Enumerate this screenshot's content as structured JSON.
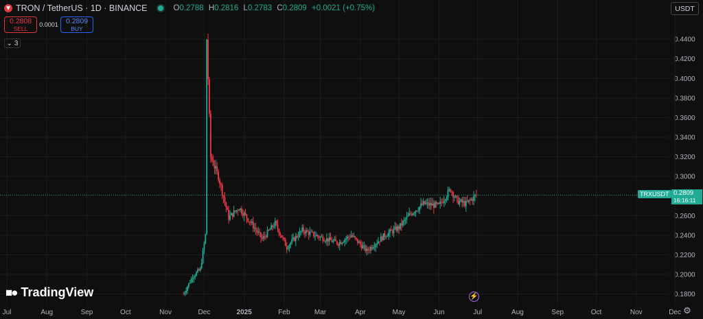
{
  "header": {
    "symbol": "TRON / TetherUS · 1D · BINANCE",
    "open_label": "O",
    "open": "0.2788",
    "high_label": "H",
    "high": "0.2816",
    "low_label": "L",
    "low": "0.2783",
    "close_label": "C",
    "close": "0.2809",
    "change": "+0.0021 (+0.75%)"
  },
  "trade": {
    "sell_price": "0.2808",
    "sell_label": "SELL",
    "spread": "0.0001",
    "buy_price": "0.2809",
    "buy_label": "BUY"
  },
  "indicators_toggle": {
    "count": "3"
  },
  "currency": "USDT",
  "price_label": {
    "ticker": "TRXUSDT",
    "price": "0.2809",
    "countdown": "16:16:11"
  },
  "brand": "TradingView",
  "colors": {
    "up": "#22ab94",
    "down": "#f23645",
    "background": "#0f0f0f",
    "grid": "#1e1e1e"
  },
  "icons": [
    "chevron-down-icon",
    "lightning-icon",
    "settings-gear-icon",
    "tron-logo-icon"
  ],
  "chart_data": {
    "type": "candlestick",
    "yticks": [
      "0.4400",
      "0.4200",
      "0.4000",
      "0.3800",
      "0.3600",
      "0.3400",
      "0.3200",
      "0.3000",
      "0.2600",
      "0.2400",
      "0.2200",
      "0.2000",
      "0.1800"
    ],
    "xticks": [
      "Jul",
      "Aug",
      "Sep",
      "Oct",
      "Nov",
      "Dec",
      "2025",
      "Feb",
      "Mar",
      "Apr",
      "May",
      "Jun",
      "Jul",
      "Aug",
      "Sep",
      "Oct",
      "Nov",
      "Dec"
    ],
    "ylim": [
      0.172,
      0.452
    ],
    "current_price": 0.2809,
    "waypoints": [
      {
        "date": "2024-11-15",
        "price": 0.18
      },
      {
        "date": "2024-11-22",
        "price": 0.198
      },
      {
        "date": "2024-11-28",
        "price": 0.205
      },
      {
        "date": "2024-12-02",
        "price": 0.24
      },
      {
        "date": "2024-12-03",
        "price": 0.44
      },
      {
        "date": "2024-12-06",
        "price": 0.32
      },
      {
        "date": "2024-12-12",
        "price": 0.3
      },
      {
        "date": "2024-12-20",
        "price": 0.258
      },
      {
        "date": "2024-12-28",
        "price": 0.268
      },
      {
        "date": "2025-01-05",
        "price": 0.255
      },
      {
        "date": "2025-01-15",
        "price": 0.236
      },
      {
        "date": "2025-01-25",
        "price": 0.252
      },
      {
        "date": "2025-02-03",
        "price": 0.228
      },
      {
        "date": "2025-02-15",
        "price": 0.245
      },
      {
        "date": "2025-03-01",
        "price": 0.238
      },
      {
        "date": "2025-03-15",
        "price": 0.232
      },
      {
        "date": "2025-03-25",
        "price": 0.24
      },
      {
        "date": "2025-04-06",
        "price": 0.224
      },
      {
        "date": "2025-04-20",
        "price": 0.24
      },
      {
        "date": "2025-05-01",
        "price": 0.248
      },
      {
        "date": "2025-05-10",
        "price": 0.262
      },
      {
        "date": "2025-05-20",
        "price": 0.272
      },
      {
        "date": "2025-06-01",
        "price": 0.27
      },
      {
        "date": "2025-06-10",
        "price": 0.287
      },
      {
        "date": "2025-06-15",
        "price": 0.275
      },
      {
        "date": "2025-06-22",
        "price": 0.272
      },
      {
        "date": "2025-06-30",
        "price": 0.281
      }
    ]
  }
}
